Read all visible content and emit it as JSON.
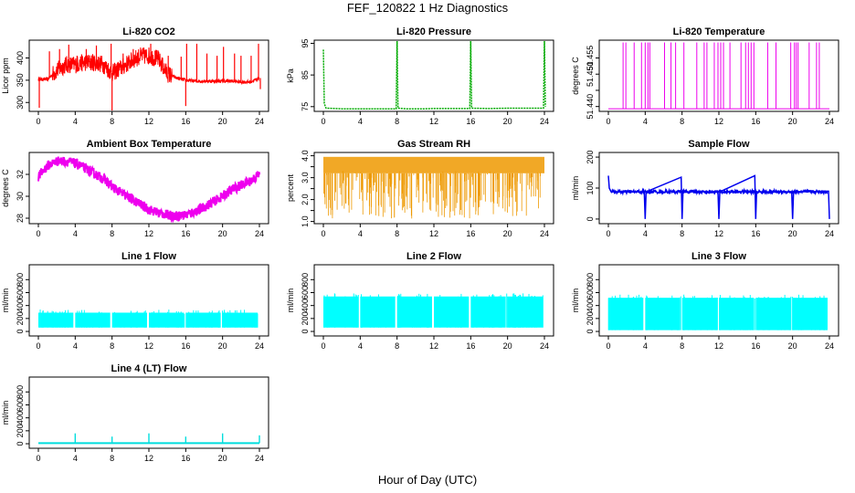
{
  "title": "FEF_120822  1 Hz Diagnostics",
  "xlabel": "Hour of Day (UTC)",
  "chart_data": [
    {
      "type": "line",
      "title": "Li-820 CO2",
      "ylabel": "Licor ppm",
      "color": "#ff0000",
      "xlim": [
        0,
        24
      ],
      "xticks": [
        0,
        4,
        8,
        12,
        16,
        20,
        24
      ],
      "ylim": [
        280,
        440
      ],
      "yticks": [
        300,
        350,
        400
      ],
      "x": [
        0,
        1,
        2,
        3,
        4,
        5,
        6,
        7,
        8,
        9,
        10,
        11,
        12,
        13,
        14,
        15,
        16,
        17,
        18,
        19,
        20,
        21,
        22,
        23,
        24
      ],
      "y": [
        352,
        352,
        372,
        385,
        385,
        390,
        390,
        386,
        366,
        378,
        392,
        404,
        405,
        398,
        365,
        355,
        350,
        348,
        348,
        348,
        348,
        348,
        346,
        346,
        355
      ],
      "spikes": [
        {
          "x": 0.1,
          "y": 288
        },
        {
          "x": 1.2,
          "y": 415
        },
        {
          "x": 2.3,
          "y": 420
        },
        {
          "x": 3.3,
          "y": 430
        },
        {
          "x": 3.9,
          "y": 395
        },
        {
          "x": 4.2,
          "y": 405
        },
        {
          "x": 5.2,
          "y": 420
        },
        {
          "x": 6.3,
          "y": 428
        },
        {
          "x": 7.9,
          "y": 432
        },
        {
          "x": 8.0,
          "y": 282
        },
        {
          "x": 9.2,
          "y": 410
        },
        {
          "x": 10.3,
          "y": 420
        },
        {
          "x": 11.1,
          "y": 415
        },
        {
          "x": 12.2,
          "y": 432
        },
        {
          "x": 14.1,
          "y": 405
        },
        {
          "x": 15.5,
          "y": 403
        },
        {
          "x": 16.0,
          "y": 292
        },
        {
          "x": 16.1,
          "y": 432
        },
        {
          "x": 17.2,
          "y": 432
        },
        {
          "x": 18.3,
          "y": 410
        },
        {
          "x": 19.4,
          "y": 405
        },
        {
          "x": 20.1,
          "y": 425
        },
        {
          "x": 21.3,
          "y": 410
        },
        {
          "x": 22.0,
          "y": 405
        },
        {
          "x": 23.1,
          "y": 405
        },
        {
          "x": 23.9,
          "y": 432
        },
        {
          "x": 24.1,
          "y": 330
        }
      ]
    },
    {
      "type": "line",
      "title": "Li-820 Pressure",
      "ylabel": "kPa",
      "color": "#00aa00",
      "xlim": [
        0,
        24
      ],
      "xticks": [
        0,
        4,
        8,
        12,
        16,
        20,
        24
      ],
      "ylim": [
        73.5,
        96
      ],
      "yticks": [
        75,
        85,
        95
      ],
      "x": [
        0,
        0.1,
        0.2,
        0.3,
        2,
        4,
        6,
        7.9,
        8,
        8.1,
        9,
        11,
        12,
        13,
        15.9,
        16,
        16.1,
        18,
        20,
        22,
        23.9,
        24,
        24.1
      ],
      "y": [
        93,
        76,
        75.2,
        74.5,
        74.3,
        74.3,
        74.3,
        74.3,
        96,
        74.5,
        74.3,
        74.3,
        74.4,
        74.4,
        74.4,
        96,
        74.5,
        74.4,
        74.5,
        74.5,
        74.5,
        96,
        75
      ]
    },
    {
      "type": "line",
      "title": "Li-820 Temperature",
      "ylabel": "degrees C",
      "color": "#ee00ee",
      "xlim": [
        0,
        24
      ],
      "xticks": [
        0,
        4,
        8,
        12,
        16,
        20,
        24
      ],
      "ylim": [
        51.4385,
        51.4605
      ],
      "yticks": [
        51.44,
        51.445,
        51.45,
        51.455
      ],
      "ytick_labels": [
        "51.440",
        "",
        "51.450",
        "51.455"
      ],
      "base": 51.4393,
      "top": 51.4598,
      "spike_x": [
        1.6,
        1.9,
        2.8,
        3.6,
        4.0,
        4.3,
        4.5,
        6.1,
        6.8,
        7.3,
        8.2,
        9.6,
        10.4,
        10.7,
        11.5,
        11.9,
        12.2,
        12.5,
        13.2,
        14.4,
        14.9,
        15.2,
        15.5,
        15.8,
        17.3,
        18.2,
        19.8,
        20.2,
        20.4,
        20.6,
        21.8,
        22.6,
        22.9
      ]
    },
    {
      "type": "line",
      "title": "Ambient Box Temperature",
      "ylabel": "degrees C",
      "color": "#ee00ee",
      "xlim": [
        0,
        24
      ],
      "xticks": [
        0,
        4,
        8,
        12,
        16,
        20,
        24
      ],
      "ylim": [
        27.5,
        34
      ],
      "yticks": [
        28,
        30,
        32
      ],
      "x": [
        0,
        1,
        2,
        3,
        4,
        5,
        6,
        7,
        8,
        9,
        10,
        11,
        12,
        13,
        14,
        15,
        16,
        17,
        18,
        19,
        20,
        21,
        22,
        23,
        24
      ],
      "y": [
        31.8,
        32.8,
        33.2,
        33.2,
        33.0,
        32.6,
        32.1,
        31.6,
        30.9,
        30.3,
        29.8,
        29.3,
        28.8,
        28.5,
        28.3,
        28.2,
        28.3,
        28.6,
        29.0,
        29.5,
        30.0,
        30.6,
        31.0,
        31.4,
        32.0
      ],
      "noise": 0.45
    },
    {
      "type": "line",
      "title": "Gas Stream RH",
      "ylabel": "percent",
      "color": "#ee9900",
      "xlim": [
        0,
        24
      ],
      "xticks": [
        0,
        4,
        8,
        12,
        16,
        20,
        24
      ],
      "ylim": [
        0.9,
        4.15
      ],
      "yticks": [
        1.0,
        1.5,
        2.0,
        2.5,
        3.0,
        3.5,
        4.0
      ],
      "ytick_labels": [
        "1.0",
        "",
        "2.0",
        "",
        "3.0",
        "",
        "4.0"
      ],
      "band": [
        3.2,
        3.95
      ],
      "drop_min": 1.1
    },
    {
      "type": "line",
      "title": "Sample Flow",
      "ylabel": "ml/min",
      "color": "#0000ee",
      "xlim": [
        0,
        24
      ],
      "xticks": [
        0,
        4,
        8,
        12,
        16,
        20,
        24
      ],
      "ylim": [
        -15,
        215
      ],
      "yticks": [
        0,
        100,
        200
      ],
      "x": [
        0,
        0.1,
        0.3,
        3.9,
        4.0,
        4.1,
        7.9,
        8.0,
        8.1,
        11.9,
        12.0,
        12.1,
        15.9,
        16.0,
        16.1,
        19.9,
        20.0,
        20.1,
        23.9,
        24.0
      ],
      "y": [
        140,
        100,
        88,
        88,
        0,
        88,
        135,
        0,
        88,
        88,
        0,
        88,
        140,
        0,
        88,
        88,
        0,
        88,
        90,
        0
      ],
      "noise": 5
    },
    {
      "type": "area",
      "title": "Line 1 Flow",
      "ylabel": "ml/min",
      "color": "#00ffff",
      "xlim": [
        0,
        24
      ],
      "xticks": [
        0,
        4,
        8,
        12,
        16,
        20,
        24
      ],
      "ylim": [
        -70,
        1030
      ],
      "yticks": [
        0,
        200,
        400,
        600,
        800
      ],
      "band": [
        60,
        290
      ]
    },
    {
      "type": "area",
      "title": "Line 2 Flow",
      "ylabel": "ml/min",
      "color": "#00ffff",
      "xlim": [
        0,
        24
      ],
      "xticks": [
        0,
        4,
        8,
        12,
        16,
        20,
        24
      ],
      "ylim": [
        -70,
        1030
      ],
      "yticks": [
        0,
        200,
        400,
        600,
        800
      ],
      "band": [
        60,
        540
      ]
    },
    {
      "type": "area",
      "title": "Line 3 Flow",
      "ylabel": "ml/min",
      "color": "#00ffff",
      "xlim": [
        0,
        24
      ],
      "xticks": [
        0,
        4,
        8,
        12,
        16,
        20,
        24
      ],
      "ylim": [
        -70,
        1030
      ],
      "yticks": [
        0,
        200,
        400,
        600,
        800
      ],
      "band": [
        20,
        520
      ]
    },
    {
      "type": "line",
      "title": "Line 4 (LT) Flow",
      "ylabel": "ml/min",
      "color": "#00dddd",
      "xlim": [
        0,
        24
      ],
      "xticks": [
        0,
        4,
        8,
        12,
        16,
        20,
        24
      ],
      "ylim": [
        -70,
        1030
      ],
      "yticks": [
        0,
        200,
        400,
        600,
        800
      ],
      "baseline": 10,
      "spikes": [
        {
          "x": 4,
          "y": 160
        },
        {
          "x": 8,
          "y": 110
        },
        {
          "x": 12,
          "y": 160
        },
        {
          "x": 16,
          "y": 110
        },
        {
          "x": 20,
          "y": 160
        },
        {
          "x": 24,
          "y": 130
        }
      ]
    }
  ]
}
